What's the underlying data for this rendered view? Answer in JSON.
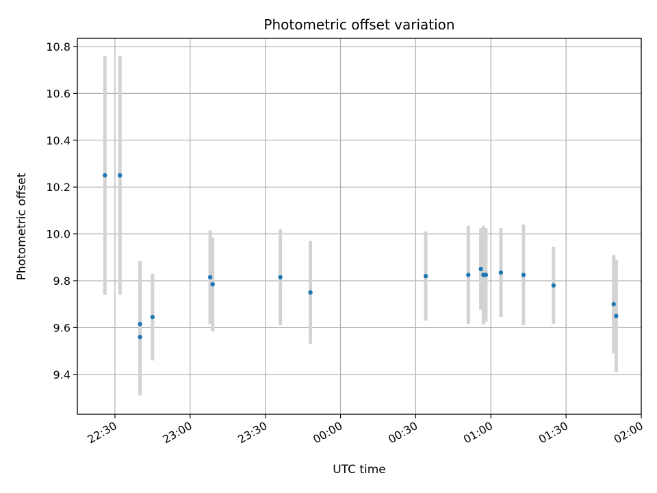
{
  "chart_data": {
    "type": "scatter",
    "title": "Photometric offset variation",
    "xlabel": "UTC time",
    "ylabel": "Photometric offset",
    "x_is_time": true,
    "xlim": [
      "22:15",
      "02:00"
    ],
    "ylim": [
      9.23,
      10.835
    ],
    "yticks": [
      9.4,
      9.6,
      9.8,
      10.0,
      10.2,
      10.4,
      10.6,
      10.8
    ],
    "ytick_labels": [
      "9.4",
      "9.6",
      "9.8",
      "10.0",
      "10.2",
      "10.4",
      "10.6",
      "10.8"
    ],
    "xticks": [
      "22:30",
      "23:00",
      "23:30",
      "00:00",
      "00:30",
      "01:00",
      "01:30",
      "02:00"
    ],
    "grid": true,
    "marker_color": "#1f77b4",
    "errorbar_color": "#d3d3d3",
    "points": [
      {
        "t": "22:26",
        "y": 10.25,
        "yerr": 0.51
      },
      {
        "t": "22:32",
        "y": 10.25,
        "yerr": 0.51
      },
      {
        "t": "22:40",
        "y": 9.615,
        "yerr": 0.27
      },
      {
        "t": "22:40",
        "y": 9.56,
        "yerr": 0.25
      },
      {
        "t": "22:45",
        "y": 9.645,
        "yerr": 0.185
      },
      {
        "t": "23:08",
        "y": 9.815,
        "yerr": 0.2
      },
      {
        "t": "23:09",
        "y": 9.785,
        "yerr": 0.2
      },
      {
        "t": "23:36",
        "y": 9.815,
        "yerr": 0.205
      },
      {
        "t": "23:48",
        "y": 9.75,
        "yerr": 0.22
      },
      {
        "t": "00:34",
        "y": 9.82,
        "yerr": 0.19
      },
      {
        "t": "00:51",
        "y": 9.825,
        "yerr": 0.21
      },
      {
        "t": "00:56",
        "y": 9.85,
        "yerr": 0.175
      },
      {
        "t": "00:57",
        "y": 9.825,
        "yerr": 0.21
      },
      {
        "t": "00:58",
        "y": 9.825,
        "yerr": 0.2
      },
      {
        "t": "01:04",
        "y": 9.835,
        "yerr": 0.19
      },
      {
        "t": "01:13",
        "y": 9.825,
        "yerr": 0.215
      },
      {
        "t": "01:25",
        "y": 9.78,
        "yerr": 0.165
      },
      {
        "t": "01:49",
        "y": 9.7,
        "yerr": 0.21
      },
      {
        "t": "01:50",
        "y": 9.65,
        "yerr": 0.24
      }
    ]
  }
}
